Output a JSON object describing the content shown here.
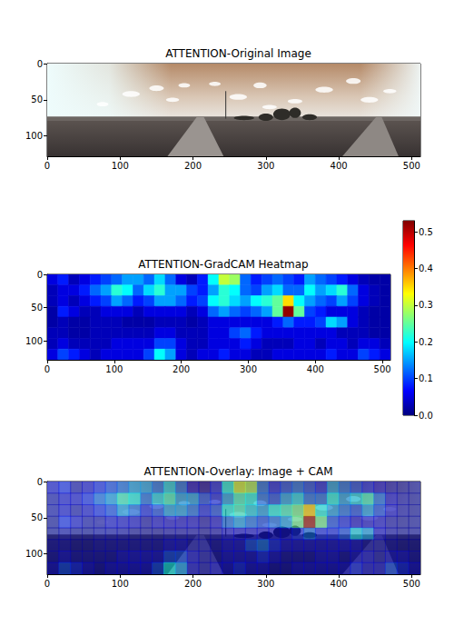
{
  "chart_data": [
    {
      "type": "image",
      "title": "ATTENTION-Original Image",
      "xlim": [
        0,
        512
      ],
      "ylim": [
        128,
        0
      ],
      "xticks": [
        0,
        100,
        200,
        300,
        400,
        500
      ],
      "yticks": [
        0,
        50,
        100
      ]
    },
    {
      "type": "heatmap",
      "title": "ATTENTION-GradCAM Heatmap",
      "xlim": [
        0,
        512
      ],
      "ylim": [
        128,
        0
      ],
      "xticks": [
        0,
        100,
        200,
        300,
        400,
        500
      ],
      "yticks": [
        0,
        50,
        100
      ],
      "x_edges": [
        0,
        16,
        32,
        48,
        64,
        80,
        96,
        112,
        128,
        144,
        160,
        176,
        192,
        208,
        224,
        240,
        256,
        272,
        288,
        304,
        320,
        336,
        352,
        368,
        384,
        400,
        416,
        432,
        448,
        464,
        480,
        496,
        512
      ],
      "y_edges": [
        0,
        16,
        32,
        48,
        64,
        80,
        96,
        112,
        128
      ],
      "cells": [
        [
          0.05,
          0.08,
          0.03,
          0.05,
          0.08,
          0.1,
          0.12,
          0.15,
          0.15,
          0.12,
          0.18,
          0.12,
          0.05,
          0.03,
          0.08,
          0.2,
          0.3,
          0.28,
          0.12,
          0.08,
          0.1,
          0.12,
          0.1,
          0.08,
          0.15,
          0.12,
          0.1,
          0.08,
          0.05,
          0.03,
          0.02,
          0.02
        ],
        [
          0.03,
          0.05,
          0.05,
          0.08,
          0.12,
          0.15,
          0.22,
          0.2,
          0.12,
          0.18,
          0.22,
          0.15,
          0.15,
          0.1,
          0.08,
          0.15,
          0.22,
          0.2,
          0.12,
          0.1,
          0.15,
          0.18,
          0.12,
          0.12,
          0.2,
          0.15,
          0.18,
          0.22,
          0.12,
          0.05,
          0.03,
          0.02
        ],
        [
          0.03,
          0.05,
          0.03,
          0.05,
          0.08,
          0.1,
          0.15,
          0.12,
          0.08,
          0.1,
          0.15,
          0.15,
          0.12,
          0.08,
          0.1,
          0.2,
          0.22,
          0.18,
          0.15,
          0.2,
          0.22,
          0.25,
          0.35,
          0.2,
          0.15,
          0.12,
          0.1,
          0.15,
          0.1,
          0.05,
          0.03,
          0.02
        ],
        [
          0.02,
          0.08,
          0.05,
          0.03,
          0.03,
          0.05,
          0.05,
          0.05,
          0.03,
          0.05,
          0.05,
          0.05,
          0.05,
          0.03,
          0.05,
          0.12,
          0.15,
          0.12,
          0.1,
          0.12,
          0.15,
          0.25,
          0.52,
          0.25,
          0.1,
          0.08,
          0.05,
          0.05,
          0.05,
          0.03,
          0.02,
          0.02
        ],
        [
          0.02,
          0.03,
          0.02,
          0.02,
          0.03,
          0.03,
          0.03,
          0.02,
          0.02,
          0.02,
          0.03,
          0.03,
          0.03,
          0.02,
          0.03,
          0.05,
          0.05,
          0.05,
          0.05,
          0.05,
          0.05,
          0.08,
          0.12,
          0.08,
          0.08,
          0.1,
          0.18,
          0.15,
          0.05,
          0.03,
          0.02,
          0.02
        ],
        [
          0.03,
          0.03,
          0.02,
          0.02,
          0.03,
          0.03,
          0.03,
          0.03,
          0.03,
          0.03,
          0.05,
          0.05,
          0.03,
          0.03,
          0.03,
          0.05,
          0.05,
          0.1,
          0.12,
          0.08,
          0.05,
          0.05,
          0.05,
          0.05,
          0.05,
          0.05,
          0.05,
          0.03,
          0.03,
          0.03,
          0.02,
          0.02
        ],
        [
          0.03,
          0.05,
          0.03,
          0.03,
          0.03,
          0.03,
          0.05,
          0.05,
          0.05,
          0.05,
          0.1,
          0.1,
          0.05,
          0.03,
          0.03,
          0.05,
          0.05,
          0.05,
          0.08,
          0.05,
          0.03,
          0.03,
          0.03,
          0.05,
          0.05,
          0.03,
          0.05,
          0.05,
          0.03,
          0.05,
          0.05,
          0.03
        ],
        [
          0.05,
          0.1,
          0.08,
          0.05,
          0.03,
          0.05,
          0.05,
          0.05,
          0.05,
          0.1,
          0.2,
          0.15,
          0.05,
          0.03,
          0.05,
          0.05,
          0.08,
          0.05,
          0.05,
          0.03,
          0.03,
          0.05,
          0.05,
          0.05,
          0.05,
          0.05,
          0.08,
          0.05,
          0.05,
          0.1,
          0.08,
          0.05
        ]
      ],
      "colorbar": {
        "range": [
          0,
          0.53
        ],
        "ticks": [
          {
            "value": 0,
            "label": "0.0"
          },
          {
            "value": 0.1,
            "label": "0.1"
          },
          {
            "value": 0.2,
            "label": "0.2"
          },
          {
            "value": 0.3,
            "label": "0.3"
          },
          {
            "value": 0.4,
            "label": "0.4"
          },
          {
            "value": 0.5,
            "label": "0.5"
          }
        ]
      }
    },
    {
      "type": "overlay",
      "title": "ATTENTION-Overlay: Image + CAM",
      "xlim": [
        0,
        512
      ],
      "ylim": [
        128,
        0
      ],
      "xticks": [
        0,
        100,
        200,
        300,
        400,
        500
      ],
      "yticks": [
        0,
        50,
        100
      ]
    }
  ]
}
